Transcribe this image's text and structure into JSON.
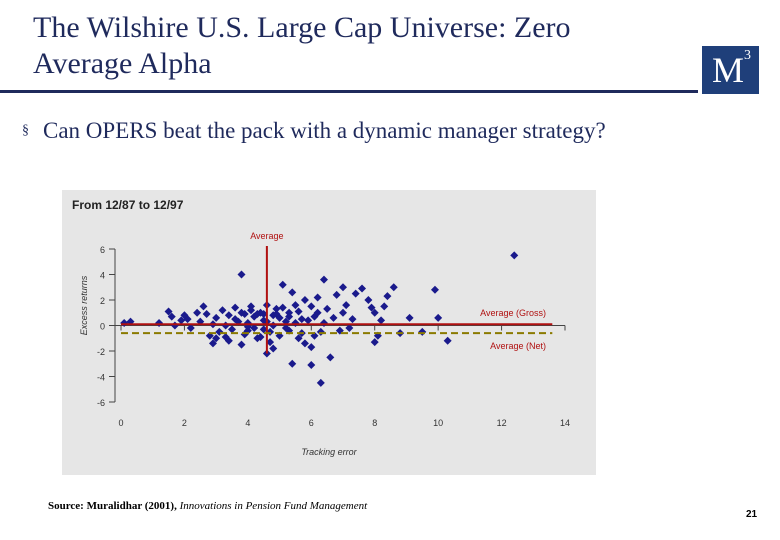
{
  "slide": {
    "title_line1": "The Wilshire U.S. Large Cap Universe: Zero",
    "title_line2": "Average Alpha",
    "logo_text": "M",
    "logo_sup": "3",
    "bullet": "Can OPERS beat the pack with a dynamic manager strategy?",
    "source_bold": "Source: Muralidhar (2001),",
    "source_italic": "Innovations in Pension Fund Management",
    "page_number": "21"
  },
  "chart_data": {
    "type": "scatter",
    "title": "From 12/87 to 12/97",
    "xlabel": "Tracking error",
    "ylabel": "Excess returns",
    "xlim": [
      0,
      14
    ],
    "ylim": [
      -6,
      6
    ],
    "xticks": [
      0,
      2,
      4,
      6,
      8,
      10,
      12,
      14
    ],
    "yticks": [
      6,
      4,
      2,
      0,
      -2,
      -4,
      -6
    ],
    "annotations": {
      "vertical_line": {
        "label": "Average",
        "x": 4.6
      },
      "gross_line": {
        "label": "Average (Gross)",
        "y": 0.1
      },
      "net_line": {
        "label": "Average (Net)",
        "y": -0.6
      }
    },
    "colors": {
      "points": "#1a1a8c",
      "average": "#b01010",
      "net": "#8a7a00",
      "axis": "#444444",
      "background": "#e6e6e6"
    },
    "points": [
      [
        0.1,
        0.2
      ],
      [
        0.3,
        0.3
      ],
      [
        1.2,
        0.2
      ],
      [
        1.5,
        1.1
      ],
      [
        1.9,
        0.4
      ],
      [
        1.6,
        0.7
      ],
      [
        2.0,
        0.8
      ],
      [
        2.1,
        0.5
      ],
      [
        1.7,
        0.0
      ],
      [
        2.4,
        1.0
      ],
      [
        2.2,
        -0.2
      ],
      [
        2.5,
        0.3
      ],
      [
        2.6,
        1.5
      ],
      [
        2.8,
        -0.8
      ],
      [
        2.7,
        0.9
      ],
      [
        2.9,
        0.1
      ],
      [
        3.0,
        0.6
      ],
      [
        3.1,
        -0.5
      ],
      [
        3.2,
        1.2
      ],
      [
        3.0,
        -1.0
      ],
      [
        3.3,
        0.0
      ],
      [
        3.4,
        0.8
      ],
      [
        3.5,
        -0.3
      ],
      [
        3.6,
        1.4
      ],
      [
        3.4,
        -1.2
      ],
      [
        3.7,
        0.3
      ],
      [
        3.8,
        1.0
      ],
      [
        3.9,
        -0.7
      ],
      [
        3.6,
        0.5
      ],
      [
        3.8,
        -1.5
      ],
      [
        4.0,
        0.2
      ],
      [
        4.1,
        1.2
      ],
      [
        4.0,
        -0.4
      ],
      [
        4.2,
        0.7
      ],
      [
        4.3,
        -1.0
      ],
      [
        4.1,
        1.5
      ],
      [
        4.3,
        0.9
      ],
      [
        4.2,
        -0.2
      ],
      [
        4.4,
        1.0
      ],
      [
        4.4,
        -0.9
      ],
      [
        4.5,
        0.4
      ],
      [
        4.5,
        -0.3
      ],
      [
        4.6,
        1.6
      ],
      [
        4.7,
        -1.3
      ],
      [
        4.6,
        0.3
      ],
      [
        4.8,
        0.8
      ],
      [
        4.7,
        -0.5
      ],
      [
        4.9,
        1.3
      ],
      [
        4.8,
        0.0
      ],
      [
        5.0,
        0.6
      ],
      [
        5.0,
        -0.8
      ],
      [
        5.1,
        1.4
      ],
      [
        5.2,
        -0.2
      ],
      [
        5.3,
        1.0
      ],
      [
        5.2,
        0.3
      ],
      [
        5.4,
        2.6
      ],
      [
        5.3,
        -0.4
      ],
      [
        5.5,
        1.6
      ],
      [
        5.5,
        0.2
      ],
      [
        5.6,
        -1.0
      ],
      [
        5.6,
        1.1
      ],
      [
        5.7,
        0.5
      ],
      [
        5.8,
        2.0
      ],
      [
        5.7,
        -0.6
      ],
      [
        5.9,
        0.4
      ],
      [
        6.0,
        1.5
      ],
      [
        6.0,
        -1.7
      ],
      [
        6.1,
        0.7
      ],
      [
        6.2,
        2.2
      ],
      [
        6.3,
        -0.5
      ],
      [
        6.2,
        1.0
      ],
      [
        6.4,
        0.2
      ],
      [
        6.5,
        1.3
      ],
      [
        6.6,
        -2.5
      ],
      [
        6.3,
        -4.5
      ],
      [
        6.0,
        -3.1
      ],
      [
        6.7,
        0.6
      ],
      [
        6.8,
        2.4
      ],
      [
        6.9,
        -0.4
      ],
      [
        7.0,
        1.0
      ],
      [
        7.1,
        1.6
      ],
      [
        7.2,
        -0.2
      ],
      [
        7.3,
        0.5
      ],
      [
        7.4,
        2.5
      ],
      [
        7.0,
        3.0
      ],
      [
        6.4,
        3.6
      ],
      [
        7.6,
        2.9
      ],
      [
        7.8,
        2.0
      ],
      [
        7.9,
        1.4
      ],
      [
        8.0,
        1.0
      ],
      [
        8.0,
        -1.3
      ],
      [
        8.1,
        -0.8
      ],
      [
        8.2,
        0.4
      ],
      [
        8.3,
        1.5
      ],
      [
        8.4,
        2.3
      ],
      [
        8.6,
        3.0
      ],
      [
        8.8,
        -0.6
      ],
      [
        9.1,
        0.6
      ],
      [
        9.5,
        -0.5
      ],
      [
        10.0,
        0.6
      ],
      [
        9.9,
        2.8
      ],
      [
        10.3,
        -1.2
      ],
      [
        12.4,
        5.5
      ],
      [
        3.8,
        4.0
      ],
      [
        5.1,
        3.2
      ],
      [
        4.6,
        -2.2
      ],
      [
        5.4,
        -3.0
      ],
      [
        4.8,
        -1.8
      ],
      [
        2.9,
        -1.4
      ],
      [
        3.3,
        -0.9
      ],
      [
        4.0,
        -0.1
      ],
      [
        4.5,
        0.9
      ],
      [
        5.8,
        -1.4
      ],
      [
        6.1,
        -0.8
      ],
      [
        3.9,
        0.9
      ],
      [
        4.9,
        0.9
      ],
      [
        5.3,
        0.7
      ]
    ]
  }
}
